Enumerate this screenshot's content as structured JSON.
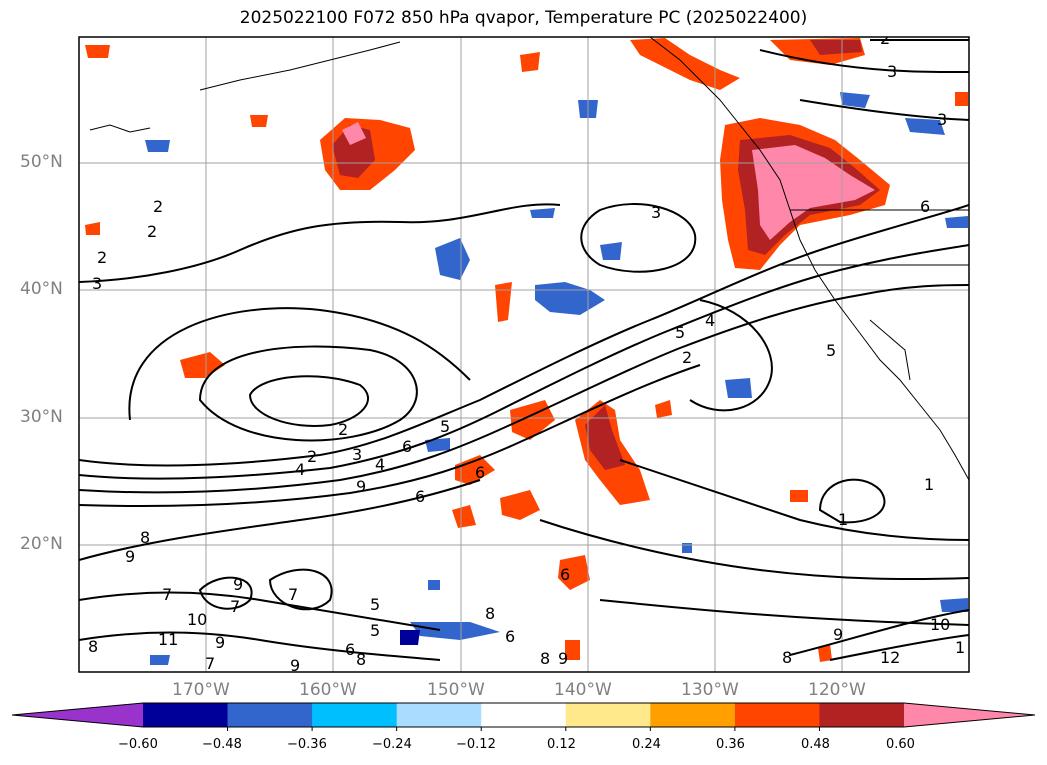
{
  "title": "2025022100 F072 850 hPa qvapor, Temperature PC (2025022400)",
  "lat_labels": [
    "50°N",
    "40°N",
    "30°N",
    "20°N"
  ],
  "lon_labels": [
    "170°W",
    "160°W",
    "150°W",
    "140°W",
    "130°W",
    "120°W"
  ],
  "colorbar": {
    "ticks": [
      "−0.60",
      "−0.48",
      "−0.36",
      "−0.24",
      "−0.12",
      "0.12",
      "0.24",
      "0.36",
      "0.48",
      "0.60"
    ],
    "colors": [
      "#9933cc",
      "#000099",
      "#3366cc",
      "#00bfff",
      "#aadcff",
      "#ffffff",
      "#ffe98a",
      "#ffa000",
      "#ff4500",
      "#b22222",
      "#ff88aa"
    ]
  },
  "contour_labels": [
    "2",
    "3",
    "3",
    "2",
    "2",
    "3",
    "3",
    "2",
    "2",
    "5",
    "4",
    "2",
    "4",
    "2",
    "3",
    "4",
    "5",
    "6",
    "9",
    "6",
    "6",
    "1",
    "8",
    "9",
    "7",
    "7",
    "9",
    "10",
    "8",
    "9",
    "5",
    "6",
    "8",
    "6",
    "8",
    "8",
    "9",
    "1",
    "10",
    "12",
    "7",
    "9",
    "8",
    "6",
    "5",
    "9",
    "1",
    "11",
    "7",
    "6",
    "5"
  ]
}
